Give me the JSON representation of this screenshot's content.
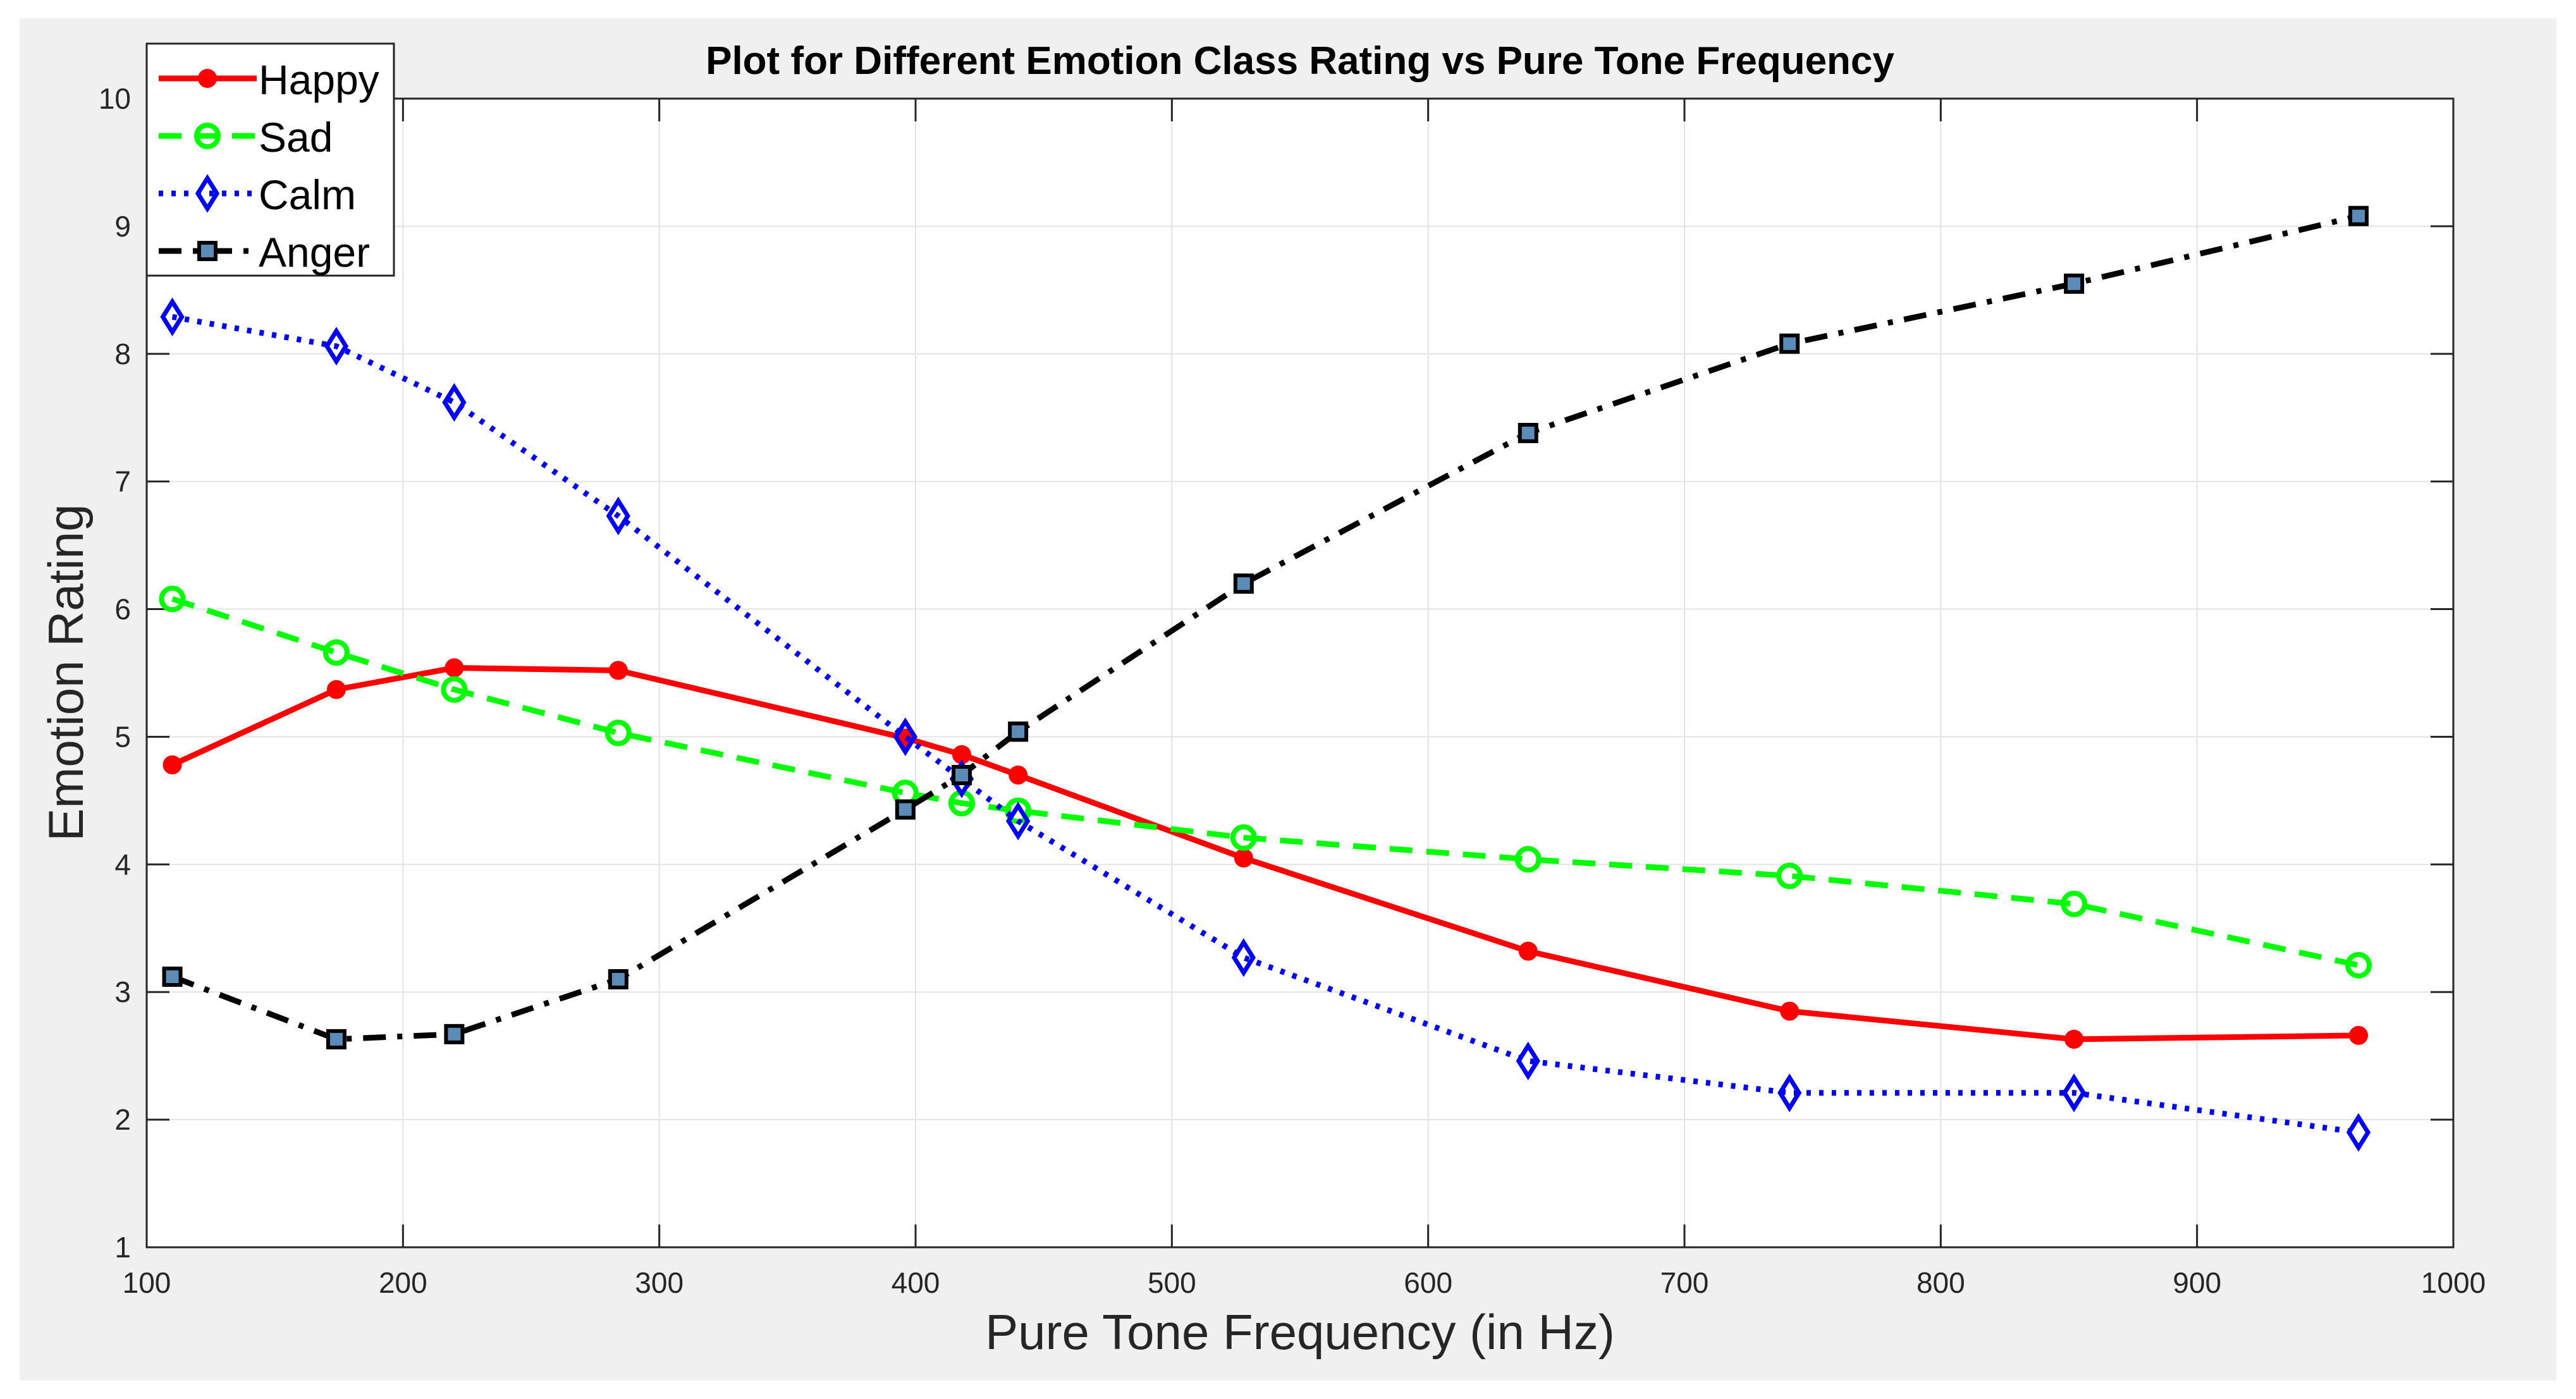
{
  "chart_data": {
    "type": "line",
    "title": "Plot for Different Emotion Class Rating vs Pure Tone Frequency",
    "xlabel": "Pure Tone Frequency (in Hz)",
    "ylabel": "Emotion Rating",
    "xlim": [
      100,
      1000
    ],
    "ylim": [
      1,
      10
    ],
    "xticks": [
      100,
      200,
      300,
      400,
      500,
      600,
      700,
      800,
      900,
      1000
    ],
    "yticks": [
      1,
      2,
      3,
      4,
      5,
      6,
      7,
      8,
      9,
      10
    ],
    "grid": true,
    "legend_position": "top-left",
    "x": [
      110,
      174,
      220,
      284,
      396,
      418,
      440,
      528,
      639,
      741,
      852,
      963
    ],
    "series": [
      {
        "name": "Happy",
        "color": "#ff0000",
        "style": "solid",
        "marker": "dot",
        "values": [
          4.78,
          5.37,
          5.54,
          5.52,
          4.99,
          4.86,
          4.7,
          4.05,
          3.32,
          2.85,
          2.63,
          2.66
        ]
      },
      {
        "name": "Sad",
        "color": "#00ff00",
        "style": "dashed",
        "marker": "circle",
        "values": [
          6.08,
          5.66,
          5.37,
          5.03,
          4.56,
          4.48,
          4.42,
          4.21,
          4.04,
          3.91,
          3.69,
          3.21
        ]
      },
      {
        "name": "Calm",
        "color": "#0000ff",
        "style": "dotted",
        "marker": "diamond",
        "values": [
          8.29,
          8.06,
          7.62,
          6.73,
          5.0,
          4.67,
          4.34,
          3.27,
          2.46,
          2.21,
          2.21,
          1.9
        ]
      },
      {
        "name": "Anger",
        "color": "#000000",
        "style": "dashdot",
        "marker": "square",
        "values": [
          3.12,
          2.63,
          2.67,
          3.1,
          4.43,
          4.7,
          5.04,
          6.2,
          7.38,
          8.08,
          8.55,
          9.08
        ]
      }
    ]
  }
}
